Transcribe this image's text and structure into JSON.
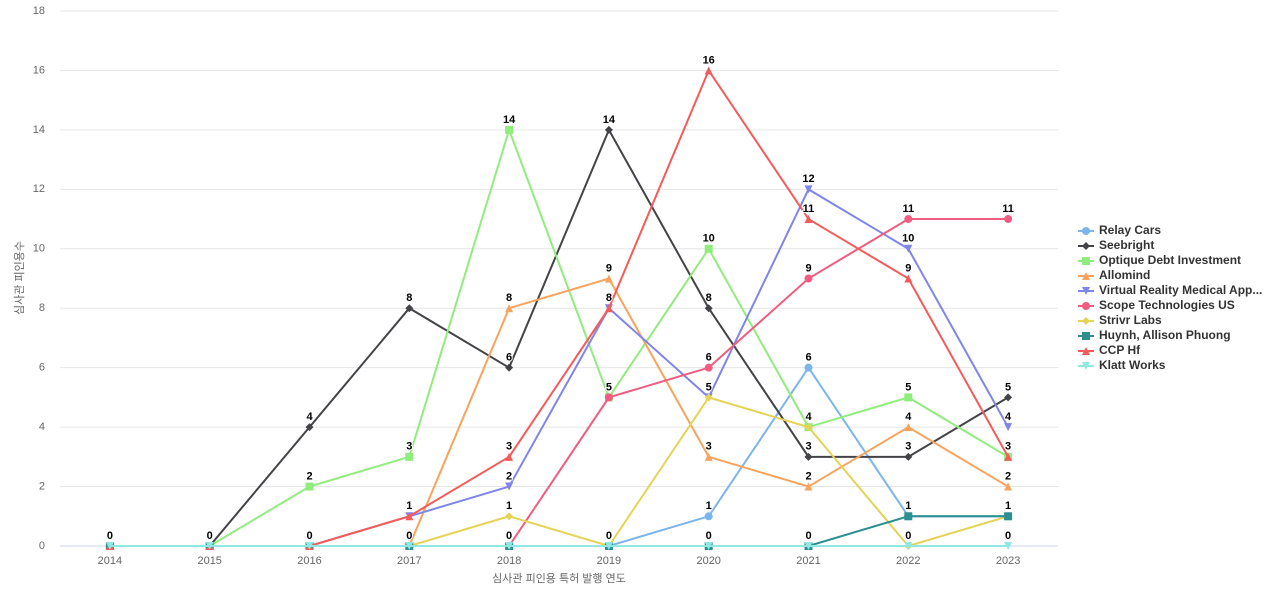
{
  "chart_data": {
    "type": "line",
    "x_label": "심사관 피인용 특허 발행 연도",
    "y_label": "심사관 피인용수",
    "categories": [
      "2014",
      "2015",
      "2016",
      "2017",
      "2018",
      "2019",
      "2020",
      "2021",
      "2022",
      "2023"
    ],
    "ylim": [
      0,
      18
    ],
    "yticks": [
      0,
      2,
      4,
      6,
      8,
      10,
      12,
      14,
      16,
      18
    ],
    "grid": true,
    "legend": "right",
    "series": [
      {
        "name": "Relay Cars",
        "color": "#7cb5ec",
        "marker": "circle",
        "values": [
          0,
          0,
          0,
          0,
          0,
          0,
          1,
          6,
          1,
          1
        ]
      },
      {
        "name": "Seebright",
        "color": "#434348",
        "marker": "diamond",
        "values": [
          0,
          0,
          4,
          8,
          6,
          14,
          8,
          3,
          3,
          5
        ]
      },
      {
        "name": "Optique Debt Investment",
        "color": "#90ed7d",
        "marker": "square",
        "values": [
          0,
          0,
          2,
          3,
          14,
          5,
          10,
          4,
          5,
          3
        ]
      },
      {
        "name": "Allomind",
        "color": "#f7a35c",
        "marker": "triangle",
        "values": [
          0,
          0,
          0,
          0,
          8,
          9,
          3,
          2,
          4,
          2
        ]
      },
      {
        "name": "Virtual Reality Medical App...",
        "color": "#8085e9",
        "marker": "triangle-down",
        "values": [
          0,
          0,
          0,
          1,
          2,
          8,
          5,
          12,
          10,
          4
        ]
      },
      {
        "name": "Scope Technologies US",
        "color": "#f15c80",
        "marker": "circle",
        "values": [
          0,
          0,
          0,
          0,
          0,
          5,
          6,
          9,
          11,
          11
        ]
      },
      {
        "name": "Strivr Labs",
        "color": "#e4d354",
        "marker": "diamond",
        "values": [
          0,
          0,
          0,
          0,
          1,
          0,
          5,
          4,
          0,
          1
        ]
      },
      {
        "name": "Huynh, Allison Phuong",
        "color": "#2b908f",
        "marker": "square",
        "values": [
          0,
          0,
          0,
          0,
          0,
          0,
          0,
          0,
          1,
          1
        ]
      },
      {
        "name": "CCP Hf",
        "color": "#f45b5b",
        "marker": "triangle",
        "values": [
          0,
          0,
          0,
          1,
          3,
          8,
          16,
          11,
          9,
          3
        ]
      },
      {
        "name": "Klatt Works",
        "color": "#91e8e1",
        "marker": "triangle-down",
        "values": [
          0,
          0,
          0,
          0,
          0,
          0,
          0,
          0,
          0,
          0
        ]
      }
    ]
  }
}
